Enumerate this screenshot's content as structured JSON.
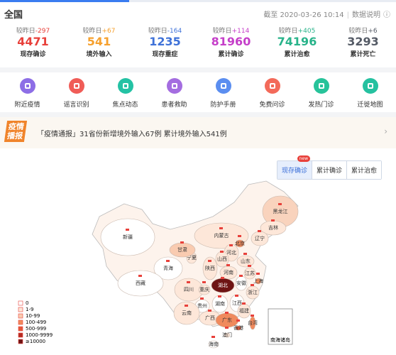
{
  "header": {
    "title": "全国",
    "update": "截至 2020-03-26 10:14",
    "help": "数据说明"
  },
  "stats": [
    {
      "delta_label": "较昨日",
      "delta": "-297",
      "value": 4471,
      "label": "现存确诊",
      "color": "#e8413b"
    },
    {
      "delta_label": "较昨日",
      "delta": "+67",
      "value": 541,
      "label": "境外输入",
      "color": "#f6a02d"
    },
    {
      "delta_label": "较昨日",
      "delta": "-164",
      "value": 1235,
      "label": "现存重症",
      "color": "#3e71d8"
    },
    {
      "delta_label": "较昨日",
      "delta": "+114",
      "value": 81960,
      "label": "累计确诊",
      "color": "#c53fc9"
    },
    {
      "delta_label": "较昨日",
      "delta": "+405",
      "value": 74196,
      "label": "累计治愈",
      "color": "#28b38a"
    },
    {
      "delta_label": "较昨日",
      "delta": "+6",
      "value": 3293,
      "label": "累计死亡",
      "color": "#555b66"
    }
  ],
  "tools": [
    {
      "label": "附近疫情",
      "color": "#8d6ee6"
    },
    {
      "label": "谣言识别",
      "color": "#f05c57"
    },
    {
      "label": "焦点动态",
      "color": "#24c2a4"
    },
    {
      "label": "患者救助",
      "color": "#a46de0"
    },
    {
      "label": "防护手册",
      "color": "#5b8ef0"
    },
    {
      "label": "免费问诊",
      "color": "#f36a5a"
    },
    {
      "label": "发热门诊",
      "color": "#27c39a"
    },
    {
      "label": "迁徙地图",
      "color": "#25c1a0"
    }
  ],
  "banner": {
    "logo_top": "疫情",
    "logo_bottom": "播报",
    "text": "「疫情通报」31省份新增境外输入67例 累计境外输入541例"
  },
  "tabs": [
    {
      "label": "现存确诊",
      "badge": "new"
    },
    {
      "label": "累计确诊"
    },
    {
      "label": "累计治愈"
    }
  ],
  "map": {
    "provinces": [
      {
        "name": "黑龙江",
        "color": "#f9d3bd"
      },
      {
        "name": "吉林",
        "color": "#fde7d9"
      },
      {
        "name": "辽宁",
        "color": "#fde7d9"
      },
      {
        "name": "内蒙古",
        "color": "#fde7d9"
      },
      {
        "name": "北京",
        "color": "#f08a5d"
      },
      {
        "name": "河北",
        "color": "#fde7d9"
      },
      {
        "name": "宁夏",
        "color": "#fde7d9"
      },
      {
        "name": "甘肃",
        "color": "#f9cbb0"
      },
      {
        "name": "山西",
        "color": "#fde7d9"
      },
      {
        "name": "山东",
        "color": "#fde7d9"
      },
      {
        "name": "青海",
        "color": "#ffffff"
      },
      {
        "name": "陕西",
        "color": "#fde7d9"
      },
      {
        "name": "河南",
        "color": "#fde7d9"
      },
      {
        "name": "江苏",
        "color": "#fde7d9"
      },
      {
        "name": "新疆",
        "color": "#ffffff"
      },
      {
        "name": "西藏",
        "color": "#ffffff"
      },
      {
        "name": "四川",
        "color": "#fde7d9"
      },
      {
        "name": "湖北",
        "color": "#6e1414"
      },
      {
        "name": "安徽",
        "color": "#ffffff"
      },
      {
        "name": "上海",
        "color": "#f08a5d"
      },
      {
        "name": "重庆",
        "color": "#fde7d9"
      },
      {
        "name": "浙江",
        "color": "#fde7d9"
      },
      {
        "name": "湖南",
        "color": "#ffffff"
      },
      {
        "name": "江西",
        "color": "#ffffff"
      },
      {
        "name": "贵州",
        "color": "#ffffff"
      },
      {
        "name": "福建",
        "color": "#fde7d9"
      },
      {
        "name": "云南",
        "color": "#fde7d9"
      },
      {
        "name": "广西",
        "color": "#fde7d9"
      },
      {
        "name": "广东",
        "color": "#f08a5d"
      },
      {
        "name": "台湾",
        "color": "#f08a5d"
      },
      {
        "name": "香港",
        "color": "#e4583a"
      },
      {
        "name": "澳门",
        "color": "#fde7d9"
      },
      {
        "name": "海南",
        "color": "#ffffff"
      }
    ],
    "inset": "南海诸岛",
    "legend": [
      {
        "label": "0",
        "color": "#ffffff"
      },
      {
        "label": "1-9",
        "color": "#fde7d9"
      },
      {
        "label": "10-99",
        "color": "#f9cbb0"
      },
      {
        "label": "100-499",
        "color": "#f08a5d"
      },
      {
        "label": "500-999",
        "color": "#e4583a"
      },
      {
        "label": "1000-9999",
        "color": "#b52b22"
      },
      {
        "label": "≥10000",
        "color": "#6e1414"
      }
    ]
  }
}
